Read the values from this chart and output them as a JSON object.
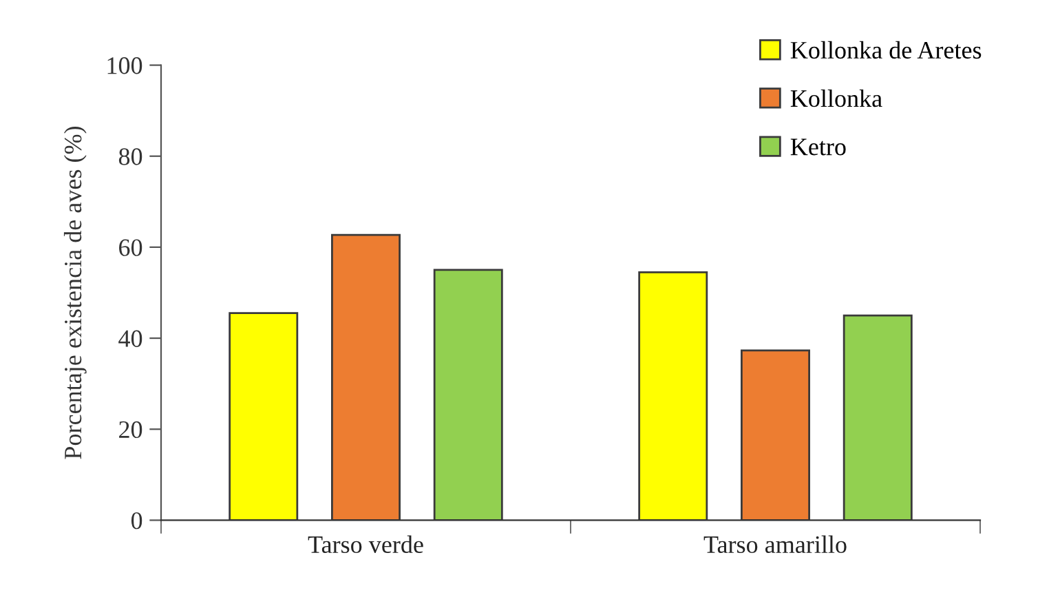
{
  "chart_data": {
    "type": "bar",
    "ylabel": "Porcentaje existencia de aves (%)",
    "categories": [
      "Tarso verde",
      "Tarso amarillo"
    ],
    "series": [
      {
        "name": "Kollonka de Aretes",
        "color": "#ffff00",
        "values": [
          45.5,
          54.5
        ]
      },
      {
        "name": "Kollonka",
        "color": "#ed7d31",
        "values": [
          62.7,
          37.3
        ]
      },
      {
        "name": "Ketro",
        "color": "#92d050",
        "values": [
          55.0,
          45.0
        ]
      }
    ],
    "ylim": [
      0,
      100
    ],
    "yticks": [
      0,
      20,
      40,
      60,
      80,
      100
    ],
    "grid": false,
    "legend": "top right"
  }
}
